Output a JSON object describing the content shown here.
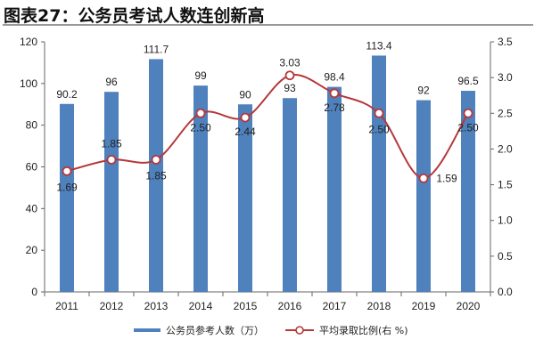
{
  "title": "图表27：公务员考试人数连创新高",
  "chart_data": {
    "type": "bar+line",
    "categories": [
      "2011",
      "2012",
      "2013",
      "2014",
      "2015",
      "2016",
      "2017",
      "2018",
      "2019",
      "2020"
    ],
    "series": [
      {
        "name": "公务员参考人数（万）",
        "type": "bar",
        "axis": "left",
        "color": "#4f81bd",
        "values": [
          90.2,
          96,
          111.7,
          99,
          90,
          93,
          98.4,
          113.4,
          92,
          96.5
        ],
        "labels": [
          "90.2",
          "96",
          "111.7",
          "99",
          "90",
          "93",
          "98.4",
          "113.4",
          "92",
          "96.5"
        ]
      },
      {
        "name": "平均录取比例(右  %)",
        "type": "line",
        "smooth": true,
        "axis": "right",
        "color": "#b5383a",
        "values": [
          1.69,
          1.85,
          1.85,
          2.5,
          2.44,
          3.03,
          2.78,
          2.5,
          1.59,
          2.5
        ],
        "labels": [
          "1.69",
          "1.85",
          "1.85",
          "2.50",
          "2.44",
          "3.03",
          "2.78",
          "2.50",
          "1.59",
          "2.50"
        ]
      }
    ],
    "y_left": {
      "range": [
        0,
        120
      ],
      "ticks": [
        "0",
        "20",
        "40",
        "60",
        "80",
        "100",
        "120"
      ]
    },
    "y_right": {
      "range": [
        0,
        3.5
      ],
      "ticks": [
        "0.0",
        "0.5",
        "1.0",
        "1.5",
        "2.0",
        "2.5",
        "3.0",
        "3.5"
      ]
    },
    "grid": false,
    "legend": "bottom"
  }
}
